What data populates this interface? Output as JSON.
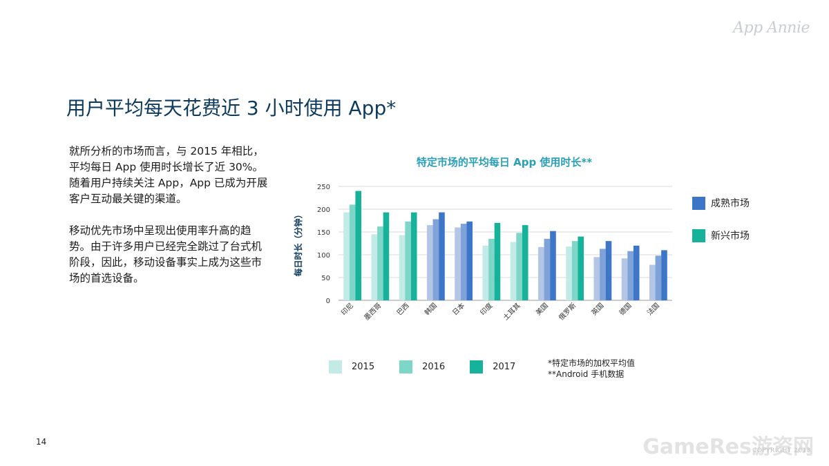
{
  "brand": {
    "logo": "App Annie"
  },
  "page": {
    "title": "用户平均每天花费近 3 小时使用 App*",
    "paragraphs": [
      "就所分析的市场而言，与 2015 年相比，平均每日 App 使用时长增长了近 30%。随着用户持续关注 App，App 已成为开展客户互动最关键的渠道。",
      "移动优先市场中呈现出使用率升高的趋势。由于许多用户已经完全跳过了台式机阶段，因此，移动设备事实上成为这些市场的首选设备。"
    ],
    "page_number": "14",
    "notes": [
      "*特定市场的加权平均值",
      "**Android 手机数据"
    ],
    "watermark": "GameRes游资网",
    "copyright": "COPYRIGHT 2018"
  },
  "colors": {
    "mature": [
      "#b3c6e5",
      "#7fa2d9",
      "#3d75c9"
    ],
    "emerging": [
      "#c2ebe8",
      "#7ed6c8",
      "#16b39a"
    ]
  },
  "chart_data": {
    "type": "bar",
    "title": "特定市场的平均每日 App 使用时长**",
    "ylabel": "每日时长（分钟）",
    "xlabel": "",
    "ylim": [
      0,
      250
    ],
    "yticks": [
      0,
      50,
      100,
      150,
      200,
      250
    ],
    "grid": true,
    "categories": [
      "印尼",
      "墨西哥",
      "巴西",
      "韩国",
      "日本",
      "印度",
      "土耳其",
      "美国",
      "俄罗斯",
      "英国",
      "德国",
      "法国"
    ],
    "category_group": [
      "emerging",
      "emerging",
      "emerging",
      "mature",
      "mature",
      "emerging",
      "emerging",
      "mature",
      "emerging",
      "mature",
      "mature",
      "mature"
    ],
    "series": [
      {
        "name": "2015",
        "values": [
          193,
          145,
          143,
          165,
          160,
          120,
          128,
          117,
          118,
          95,
          92,
          78
        ]
      },
      {
        "name": "2016",
        "values": [
          210,
          162,
          173,
          178,
          168,
          135,
          148,
          135,
          130,
          113,
          108,
          98
        ]
      },
      {
        "name": "2017",
        "values": [
          240,
          193,
          193,
          193,
          173,
          170,
          165,
          152,
          140,
          130,
          120,
          110
        ]
      }
    ],
    "group_legend": [
      {
        "key": "mature",
        "label": "成熟市场"
      },
      {
        "key": "emerging",
        "label": "新兴市场"
      }
    ],
    "legend_position": "bottom"
  }
}
